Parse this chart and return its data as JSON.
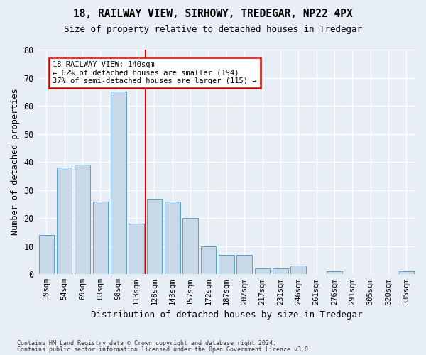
{
  "title1": "18, RAILWAY VIEW, SIRHOWY, TREDEGAR, NP22 4PX",
  "title2": "Size of property relative to detached houses in Tredegar",
  "xlabel": "Distribution of detached houses by size in Tredegar",
  "ylabel": "Number of detached properties",
  "categories": [
    "39sqm",
    "54sqm",
    "69sqm",
    "83sqm",
    "98sqm",
    "113sqm",
    "128sqm",
    "143sqm",
    "157sqm",
    "172sqm",
    "187sqm",
    "202sqm",
    "217sqm",
    "231sqm",
    "246sqm",
    "261sqm",
    "276sqm",
    "291sqm",
    "305sqm",
    "320sqm",
    "335sqm"
  ],
  "values": [
    14,
    38,
    39,
    26,
    65,
    18,
    27,
    26,
    20,
    10,
    7,
    7,
    2,
    2,
    3,
    0,
    1,
    0,
    0,
    0,
    1
  ],
  "bar_color": "#c8d8e8",
  "bar_edge_color": "#5a9fc8",
  "vline_x_index": 6,
  "ylim": [
    0,
    80
  ],
  "yticks": [
    0,
    10,
    20,
    30,
    40,
    50,
    60,
    70,
    80
  ],
  "annotation_title": "18 RAILWAY VIEW: 140sqm",
  "annotation_line1": "← 62% of detached houses are smaller (194)",
  "annotation_line2": "37% of semi-detached houses are larger (115) →",
  "footer1": "Contains HM Land Registry data © Crown copyright and database right 2024.",
  "footer2": "Contains public sector information licensed under the Open Government Licence v3.0.",
  "bg_color": "#e8eef5",
  "plot_bg_color": "#e8eef5",
  "grid_color": "#ffffff",
  "annotation_box_color": "#ffffff",
  "annotation_border_color": "#cc0000",
  "vline_color": "#cc0000"
}
